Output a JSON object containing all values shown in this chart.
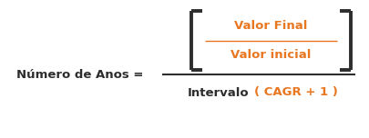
{
  "bg_color": "#ffffff",
  "text_color_dark": "#2d2d2d",
  "text_color_orange": "#e87722",
  "label_left": "Número de Anos =",
  "numerator_top": "Valor Final",
  "numerator_bottom": "Valor inicial",
  "denominator_left": "Intervalo",
  "denominator_right": "( CAGR + 1 )",
  "figsize": [
    4.05,
    1.52
  ],
  "dpi": 100
}
